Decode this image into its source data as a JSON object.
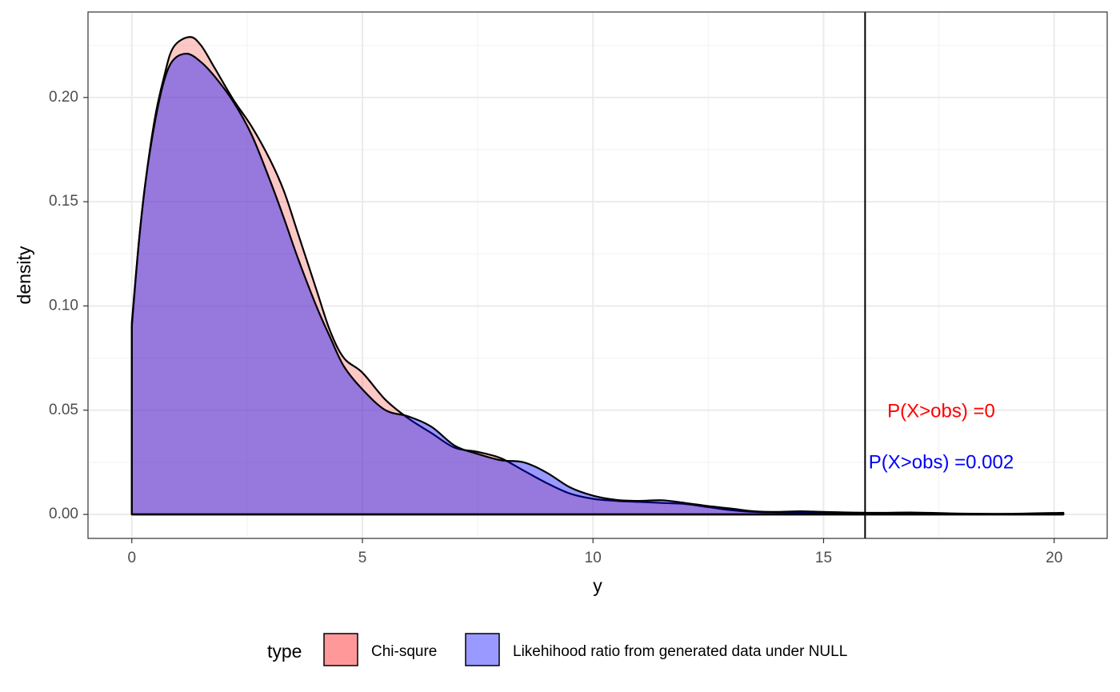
{
  "chart_data": {
    "type": "area",
    "xlabel": "y",
    "ylabel": "density",
    "xlim": [
      -0.95,
      21.15
    ],
    "ylim": [
      -0.0115,
      0.241
    ],
    "x_ticks": [
      0,
      5,
      10,
      15,
      20
    ],
    "x_tick_labels": [
      "0",
      "5",
      "10",
      "15",
      "20"
    ],
    "y_ticks": [
      0.0,
      0.05,
      0.1,
      0.15,
      0.2
    ],
    "y_tick_labels": [
      "0.00",
      "0.05",
      "0.10",
      "0.15",
      "0.20"
    ],
    "grid": true,
    "legend_position": "bottom",
    "legend_title": "type",
    "series": [
      {
        "name": "Chi-squre",
        "color": "#F8766D",
        "fill": "#FF9999",
        "points": [
          [
            0,
            0.09
          ],
          [
            0.15,
            0.13
          ],
          [
            0.3,
            0.16
          ],
          [
            0.5,
            0.19
          ],
          [
            0.7,
            0.21
          ],
          [
            0.9,
            0.224
          ],
          [
            1.25,
            0.229
          ],
          [
            1.5,
            0.225
          ],
          [
            1.8,
            0.214
          ],
          [
            2.2,
            0.199
          ],
          [
            2.6,
            0.186
          ],
          [
            3.0,
            0.17
          ],
          [
            3.3,
            0.155
          ],
          [
            3.6,
            0.135
          ],
          [
            4.0,
            0.108
          ],
          [
            4.3,
            0.088
          ],
          [
            4.6,
            0.075
          ],
          [
            5.0,
            0.068
          ],
          [
            5.5,
            0.055
          ],
          [
            6.0,
            0.046
          ],
          [
            6.5,
            0.039
          ],
          [
            7.0,
            0.032
          ],
          [
            7.5,
            0.03
          ],
          [
            8.0,
            0.027
          ],
          [
            8.5,
            0.021
          ],
          [
            9.0,
            0.015
          ],
          [
            9.5,
            0.01
          ],
          [
            10.0,
            0.0075
          ],
          [
            10.5,
            0.0065
          ],
          [
            11.0,
            0.006
          ],
          [
            11.5,
            0.0055
          ],
          [
            12.0,
            0.005
          ],
          [
            12.5,
            0.0035
          ],
          [
            13.0,
            0.002
          ],
          [
            13.5,
            0.0012
          ],
          [
            14.0,
            0.001
          ],
          [
            15.0,
            0.0008
          ],
          [
            16.0,
            0.0005
          ],
          [
            17.0,
            0.0004
          ],
          [
            18.0,
            0.0003
          ],
          [
            19.0,
            0.0002
          ],
          [
            20.2,
            0.0001
          ]
        ]
      },
      {
        "name": "Likehihood ratio from generated data under NULL",
        "color": "#0000FF",
        "fill": "#9999FF",
        "points": [
          [
            0,
            0.092
          ],
          [
            0.15,
            0.13
          ],
          [
            0.3,
            0.16
          ],
          [
            0.5,
            0.188
          ],
          [
            0.7,
            0.208
          ],
          [
            0.9,
            0.218
          ],
          [
            1.2,
            0.221
          ],
          [
            1.5,
            0.217
          ],
          [
            1.8,
            0.21
          ],
          [
            2.2,
            0.198
          ],
          [
            2.6,
            0.182
          ],
          [
            3.0,
            0.16
          ],
          [
            3.3,
            0.142
          ],
          [
            3.6,
            0.123
          ],
          [
            4.0,
            0.1
          ],
          [
            4.3,
            0.085
          ],
          [
            4.6,
            0.071
          ],
          [
            5.0,
            0.06
          ],
          [
            5.5,
            0.05
          ],
          [
            6.0,
            0.047
          ],
          [
            6.5,
            0.042
          ],
          [
            7.0,
            0.033
          ],
          [
            7.5,
            0.029
          ],
          [
            8.0,
            0.026
          ],
          [
            8.5,
            0.025
          ],
          [
            9.0,
            0.02
          ],
          [
            9.5,
            0.013
          ],
          [
            10.0,
            0.009
          ],
          [
            10.5,
            0.007
          ],
          [
            11.0,
            0.0065
          ],
          [
            11.5,
            0.0068
          ],
          [
            12.0,
            0.0055
          ],
          [
            12.5,
            0.004
          ],
          [
            13.0,
            0.0028
          ],
          [
            13.5,
            0.0015
          ],
          [
            14.0,
            0.0012
          ],
          [
            14.5,
            0.0015
          ],
          [
            15.0,
            0.0012
          ],
          [
            16.0,
            0.0008
          ],
          [
            17.0,
            0.0009
          ],
          [
            18.0,
            0.0004
          ],
          [
            19.0,
            0.0003
          ],
          [
            20.2,
            0.0008
          ]
        ]
      }
    ],
    "vline_x": 15.9,
    "annotations": [
      {
        "text": "P(X>obs) =0",
        "x": 17.55,
        "y": 0.049,
        "color": "#FF0000"
      },
      {
        "text": "P(X>obs) =0.002",
        "x": 17.55,
        "y": 0.0245,
        "color": "#0000FF"
      }
    ]
  }
}
